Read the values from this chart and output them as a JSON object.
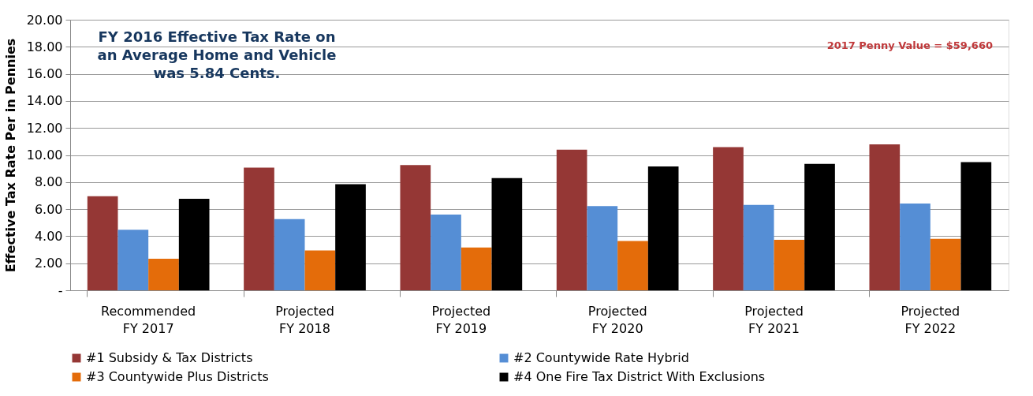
{
  "chart_data": {
    "type": "bar",
    "ylabel": "Effective Tax Rate Per in Pennies",
    "categories": [
      "Recommended FY 2017",
      "Projected FY 2018",
      "Projected FY 2019",
      "Projected FY 2020",
      "Projected FY 2021",
      "Projected FY 2022"
    ],
    "series": [
      {
        "name": "#1 Subsidy & Tax Districts",
        "color": "#953735",
        "values": [
          6.95,
          9.07,
          9.26,
          10.39,
          10.59,
          10.79
        ]
      },
      {
        "name": "#2 Countywide Rate Hybrid",
        "color": "#558ed5",
        "values": [
          4.47,
          5.26,
          5.6,
          6.22,
          6.31,
          6.41
        ]
      },
      {
        "name": "#3 Countywide Plus Districts",
        "color": "#e46c0a",
        "values": [
          2.33,
          2.95,
          3.17,
          3.64,
          3.73,
          3.81
        ]
      },
      {
        "name": "#4 One Fire Tax District With Exclusions",
        "color": "#000000",
        "values": [
          6.76,
          7.84,
          8.3,
          9.16,
          9.34,
          9.48
        ]
      }
    ],
    "ylim": [
      0,
      20
    ],
    "yticks": [
      {
        "value": 0,
        "label": "-"
      },
      {
        "value": 2,
        "label": "2.00"
      },
      {
        "value": 4,
        "label": "4.00"
      },
      {
        "value": 6,
        "label": "6.00"
      },
      {
        "value": 8,
        "label": "8.00"
      },
      {
        "value": 10,
        "label": "10.00"
      },
      {
        "value": 12,
        "label": "12.00"
      },
      {
        "value": 14,
        "label": "14.00"
      },
      {
        "value": 16,
        "label": "16.00"
      },
      {
        "value": 18,
        "label": "18.00"
      },
      {
        "value": 20,
        "label": "20.00"
      }
    ],
    "annotations": [
      "FY 2016 Effective Tax Rate on an Average Home and Vehicle was 5.84 Cents.",
      "2017 Penny Value = $59,660"
    ],
    "grid": "y",
    "legend": "bottom"
  }
}
